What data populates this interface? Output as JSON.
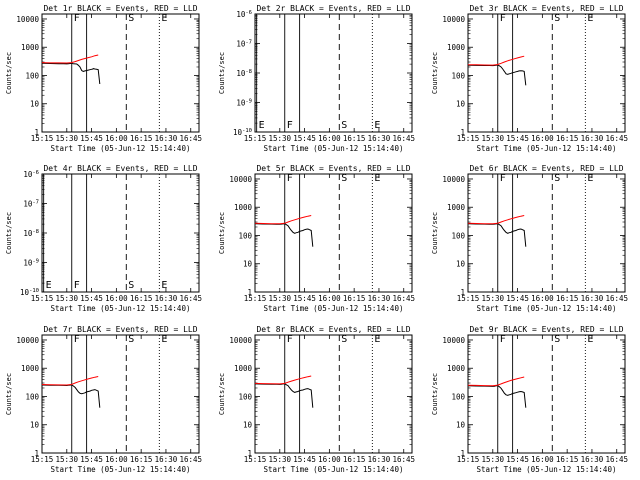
{
  "page": {
    "background": "#ffffff"
  },
  "common": {
    "xlabel": "Start Time (05-Jun-12 15:14:40)",
    "ylabel": "Counts/sec",
    "x_ticks": [
      "15:15",
      "15:30",
      "15:45",
      "16:00",
      "16:15",
      "16:30",
      "16:45"
    ],
    "x_tick_minutes": [
      15,
      30,
      45,
      60,
      75,
      90,
      105
    ],
    "x_range_minutes": [
      15,
      110
    ],
    "events_color": "#000000",
    "lld_color": "#ff0000",
    "markers": [
      {
        "label": "F",
        "minute": 33,
        "style": "solid"
      },
      {
        "label": "",
        "minute": 42,
        "style": "solid"
      },
      {
        "label": "S",
        "minute": 66,
        "style": "dashed"
      },
      {
        "label": "E",
        "minute": 86,
        "style": "dotted"
      }
    ]
  },
  "chart_data": [
    {
      "type": "line",
      "title": "Det 1r BLACK = Events, RED = LLD",
      "scale": "log",
      "ylim": [
        1,
        15000
      ],
      "y_ticks": [
        "1",
        "10",
        "100",
        "1000",
        "10000"
      ],
      "has_data": true,
      "series": [
        {
          "name": "Events",
          "color": "#000000",
          "x": [
            15,
            20,
            25,
            28,
            30,
            31,
            32,
            33,
            34,
            35,
            36,
            37,
            38,
            39,
            40,
            41,
            42,
            43,
            44,
            45,
            45.8,
            46,
            47,
            48,
            49,
            50
          ],
          "y": [
            270,
            265,
            262,
            260,
            258,
            262,
            265,
            268,
            260,
            258,
            255,
            230,
            200,
            150,
            140,
            145,
            150,
            155,
            160,
            165,
            170,
            175,
            170,
            165,
            160,
            50
          ]
        },
        {
          "name": "LLD",
          "color": "#ff0000",
          "x": [
            15,
            20,
            25,
            30,
            33,
            35,
            37,
            39,
            41,
            43,
            45,
            47,
            49
          ],
          "y": [
            285,
            280,
            278,
            276,
            285,
            310,
            340,
            370,
            400,
            430,
            460,
            500,
            530
          ]
        }
      ]
    },
    {
      "type": "line",
      "title": "Det 2r BLACK = Events, RED = LLD",
      "scale": "log",
      "ylim": [
        1e-10,
        1e-06
      ],
      "y_ticks": [
        "10^-10",
        "10^-9",
        "10^-8",
        "10^-7",
        "10^-6"
      ],
      "has_data": false,
      "series": []
    },
    {
      "type": "line",
      "title": "Det 3r BLACK = Events, RED = LLD",
      "scale": "log",
      "ylim": [
        1,
        15000
      ],
      "y_ticks": [
        "1",
        "10",
        "100",
        "1000",
        "10000"
      ],
      "has_data": true,
      "series": [
        {
          "name": "Events",
          "color": "#000000",
          "x": [
            15,
            20,
            25,
            28,
            30,
            31,
            32,
            33,
            34,
            35,
            36,
            37,
            38,
            39,
            40,
            41,
            42,
            43,
            44,
            45,
            46,
            47,
            48,
            49,
            50
          ],
          "y": [
            230,
            228,
            226,
            225,
            223,
            225,
            230,
            235,
            220,
            200,
            170,
            140,
            115,
            110,
            115,
            120,
            125,
            130,
            135,
            140,
            145,
            148,
            145,
            140,
            45
          ]
        },
        {
          "name": "LLD",
          "color": "#ff0000",
          "x": [
            15,
            20,
            25,
            30,
            33,
            35,
            37,
            39,
            41,
            43,
            45,
            47,
            49
          ],
          "y": [
            240,
            238,
            236,
            234,
            245,
            270,
            300,
            330,
            360,
            390,
            420,
            450,
            480
          ]
        }
      ]
    },
    {
      "type": "line",
      "title": "Det 4r BLACK = Events, RED = LLD",
      "scale": "log",
      "ylim": [
        1e-10,
        1e-06
      ],
      "y_ticks": [
        "10^-10",
        "10^-9",
        "10^-8",
        "10^-7",
        "10^-6"
      ],
      "has_data": false,
      "series": []
    },
    {
      "type": "line",
      "title": "Det 5r BLACK = Events, RED = LLD",
      "scale": "log",
      "ylim": [
        1,
        15000
      ],
      "y_ticks": [
        "1",
        "10",
        "100",
        "1000",
        "10000"
      ],
      "has_data": true,
      "series": [
        {
          "name": "Events",
          "color": "#000000",
          "x": [
            15,
            20,
            25,
            28,
            30,
            31,
            32,
            33,
            34,
            35,
            36,
            37,
            38,
            39,
            40,
            41,
            42,
            43,
            44,
            45,
            46,
            47,
            48,
            49,
            50
          ],
          "y": [
            260,
            255,
            252,
            250,
            248,
            252,
            258,
            262,
            240,
            220,
            180,
            150,
            130,
            120,
            125,
            130,
            140,
            145,
            150,
            160,
            165,
            170,
            160,
            150,
            40
          ]
        },
        {
          "name": "LLD",
          "color": "#ff0000",
          "x": [
            15,
            20,
            25,
            30,
            33,
            35,
            37,
            39,
            41,
            43,
            45,
            47,
            49
          ],
          "y": [
            270,
            265,
            262,
            260,
            270,
            300,
            330,
            360,
            390,
            420,
            450,
            480,
            510
          ]
        }
      ]
    },
    {
      "type": "line",
      "title": "Det 6r BLACK = Events, RED = LLD",
      "scale": "log",
      "ylim": [
        1,
        15000
      ],
      "y_ticks": [
        "1",
        "10",
        "100",
        "1000",
        "10000"
      ],
      "has_data": true,
      "series": [
        {
          "name": "Events",
          "color": "#000000",
          "x": [
            15,
            20,
            25,
            28,
            30,
            31,
            32,
            33,
            34,
            35,
            36,
            37,
            38,
            39,
            40,
            41,
            42,
            43,
            44,
            45,
            46,
            47,
            48,
            49,
            50
          ],
          "y": [
            260,
            255,
            252,
            250,
            248,
            252,
            258,
            262,
            240,
            220,
            180,
            150,
            130,
            120,
            125,
            130,
            140,
            145,
            150,
            160,
            165,
            170,
            160,
            150,
            40
          ]
        },
        {
          "name": "LLD",
          "color": "#ff0000",
          "x": [
            15,
            20,
            25,
            30,
            33,
            35,
            37,
            39,
            41,
            43,
            45,
            47,
            49
          ],
          "y": [
            270,
            265,
            262,
            260,
            270,
            300,
            330,
            360,
            390,
            420,
            450,
            480,
            510
          ]
        }
      ]
    },
    {
      "type": "line",
      "title": "Det 7r BLACK = Events, RED = LLD",
      "scale": "log",
      "ylim": [
        1,
        15000
      ],
      "y_ticks": [
        "1",
        "10",
        "100",
        "1000",
        "10000"
      ],
      "has_data": true,
      "series": [
        {
          "name": "Events",
          "color": "#000000",
          "x": [
            15,
            20,
            25,
            28,
            30,
            31,
            32,
            33,
            34,
            35,
            36,
            37,
            38,
            39,
            40,
            41,
            42,
            43,
            44,
            45,
            46,
            47,
            48,
            49,
            50
          ],
          "y": [
            255,
            250,
            248,
            246,
            244,
            248,
            252,
            258,
            235,
            210,
            175,
            145,
            130,
            125,
            130,
            135,
            145,
            150,
            155,
            165,
            170,
            175,
            165,
            155,
            40
          ]
        },
        {
          "name": "LLD",
          "color": "#ff0000",
          "x": [
            15,
            20,
            25,
            30,
            33,
            35,
            37,
            39,
            41,
            43,
            45,
            47,
            49
          ],
          "y": [
            265,
            262,
            258,
            256,
            268,
            300,
            330,
            360,
            390,
            420,
            450,
            480,
            510
          ]
        }
      ]
    },
    {
      "type": "line",
      "title": "Det 8r BLACK = Events, RED = LLD",
      "scale": "log",
      "ylim": [
        1,
        15000
      ],
      "y_ticks": [
        "1",
        "10",
        "100",
        "1000",
        "10000"
      ],
      "has_data": true,
      "series": [
        {
          "name": "Events",
          "color": "#000000",
          "x": [
            15,
            20,
            25,
            28,
            30,
            31,
            32,
            33,
            34,
            35,
            36,
            37,
            38,
            39,
            40,
            41,
            42,
            43,
            44,
            45,
            46,
            47,
            48,
            49,
            50
          ],
          "y": [
            280,
            275,
            272,
            270,
            268,
            272,
            278,
            282,
            260,
            240,
            200,
            170,
            150,
            140,
            145,
            150,
            160,
            165,
            170,
            180,
            185,
            190,
            180,
            170,
            40
          ]
        },
        {
          "name": "LLD",
          "color": "#ff0000",
          "x": [
            15,
            20,
            25,
            30,
            33,
            35,
            37,
            39,
            41,
            43,
            45,
            47,
            49
          ],
          "y": [
            290,
            285,
            282,
            280,
            290,
            320,
            350,
            380,
            410,
            440,
            470,
            500,
            530
          ]
        }
      ]
    },
    {
      "type": "line",
      "title": "Det 9r BLACK = Events, RED = LLD",
      "scale": "log",
      "ylim": [
        1,
        15000
      ],
      "y_ticks": [
        "1",
        "10",
        "100",
        "1000",
        "10000"
      ],
      "has_data": true,
      "series": [
        {
          "name": "Events",
          "color": "#000000",
          "x": [
            15,
            20,
            25,
            28,
            30,
            31,
            32,
            33,
            34,
            35,
            36,
            37,
            38,
            39,
            40,
            41,
            42,
            43,
            44,
            45,
            46,
            47,
            48,
            49,
            50
          ],
          "y": [
            240,
            236,
            233,
            230,
            228,
            232,
            238,
            242,
            220,
            195,
            160,
            130,
            115,
            110,
            115,
            120,
            128,
            132,
            136,
            142,
            146,
            150,
            145,
            138,
            40
          ]
        },
        {
          "name": "LLD",
          "color": "#ff0000",
          "x": [
            15,
            20,
            25,
            30,
            33,
            35,
            37,
            39,
            41,
            43,
            45,
            47,
            49
          ],
          "y": [
            250,
            246,
            242,
            240,
            252,
            280,
            310,
            340,
            370,
            400,
            430,
            460,
            490
          ]
        }
      ]
    }
  ]
}
